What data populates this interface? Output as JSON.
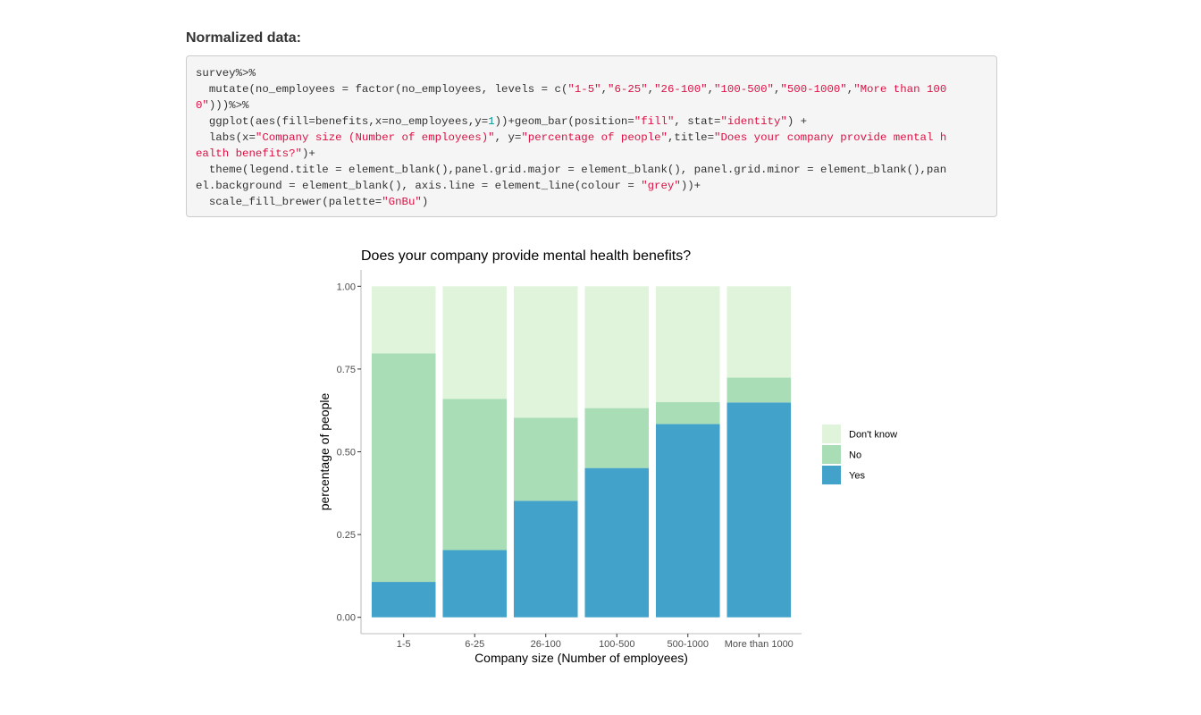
{
  "section": {
    "heading": "Normalized data:"
  },
  "code": {
    "lines": [
      [
        {
          "t": "plain",
          "s": "survey%>%"
        }
      ],
      [
        {
          "t": "plain",
          "s": "  mutate(no_employees = factor(no_employees, levels = c("
        },
        {
          "t": "str",
          "s": "\"1-5\""
        },
        {
          "t": "plain",
          "s": ","
        },
        {
          "t": "str",
          "s": "\"6-25\""
        },
        {
          "t": "plain",
          "s": ","
        },
        {
          "t": "str",
          "s": "\"26-100\""
        },
        {
          "t": "plain",
          "s": ","
        },
        {
          "t": "str",
          "s": "\"100-500\""
        },
        {
          "t": "plain",
          "s": ","
        },
        {
          "t": "str",
          "s": "\"500-1000\""
        },
        {
          "t": "plain",
          "s": ","
        },
        {
          "t": "str",
          "s": "\"More than 100"
        }
      ],
      [
        {
          "t": "str",
          "s": "0\""
        },
        {
          "t": "plain",
          "s": ")))%>%"
        }
      ],
      [
        {
          "t": "plain",
          "s": "  ggplot(aes(fill=benefits,x=no_employees,y="
        },
        {
          "t": "num",
          "s": "1"
        },
        {
          "t": "plain",
          "s": "))+geom_bar(position="
        },
        {
          "t": "str",
          "s": "\"fill\""
        },
        {
          "t": "plain",
          "s": ", stat="
        },
        {
          "t": "str",
          "s": "\"identity\""
        },
        {
          "t": "plain",
          "s": ") +"
        }
      ],
      [
        {
          "t": "plain",
          "s": "  labs(x="
        },
        {
          "t": "str",
          "s": "\"Company size (Number of employees)\""
        },
        {
          "t": "plain",
          "s": ", y="
        },
        {
          "t": "str",
          "s": "\"percentage of people\""
        },
        {
          "t": "plain",
          "s": ",title="
        },
        {
          "t": "str",
          "s": "\"Does your company provide mental h"
        }
      ],
      [
        {
          "t": "str",
          "s": "ealth benefits?\""
        },
        {
          "t": "plain",
          "s": ")+"
        }
      ],
      [
        {
          "t": "plain",
          "s": "  theme(legend.title = element_blank(),panel.grid.major = element_blank(), panel.grid.minor = element_blank(),pan"
        }
      ],
      [
        {
          "t": "plain",
          "s": "el.background = element_blank(), axis.line = element_line(colour = "
        },
        {
          "t": "str",
          "s": "\"grey\""
        },
        {
          "t": "plain",
          "s": "))+"
        }
      ],
      [
        {
          "t": "plain",
          "s": "  scale_fill_brewer(palette="
        },
        {
          "t": "str",
          "s": "\"GnBu\""
        },
        {
          "t": "plain",
          "s": ")"
        }
      ]
    ]
  },
  "chart_data": {
    "type": "bar",
    "stacked": true,
    "title": "Does your company provide mental health benefits?",
    "xlabel": "Company size (Number of employees)",
    "ylabel": "percentage of people",
    "ylim": [
      0,
      1
    ],
    "y_ticks": [
      "0.00",
      "0.25",
      "0.50",
      "0.75",
      "1.00"
    ],
    "grid": false,
    "legend_position": "right",
    "categories": [
      "1-5",
      "6-25",
      "26-100",
      "100-500",
      "500-1000",
      "More than 1000"
    ],
    "series": [
      {
        "name": "Yes",
        "color": "#43a2ca",
        "values": [
          0.107,
          0.203,
          0.352,
          0.451,
          0.584,
          0.649
        ]
      },
      {
        "name": "No",
        "color": "#a8ddb5",
        "values": [
          0.69,
          0.457,
          0.251,
          0.181,
          0.066,
          0.075
        ]
      },
      {
        "name": "Don't know",
        "color": "#e0f3db",
        "values": [
          0.203,
          0.34,
          0.397,
          0.368,
          0.35,
          0.276
        ]
      }
    ],
    "legend_order": [
      "Don't know",
      "No",
      "Yes"
    ]
  }
}
